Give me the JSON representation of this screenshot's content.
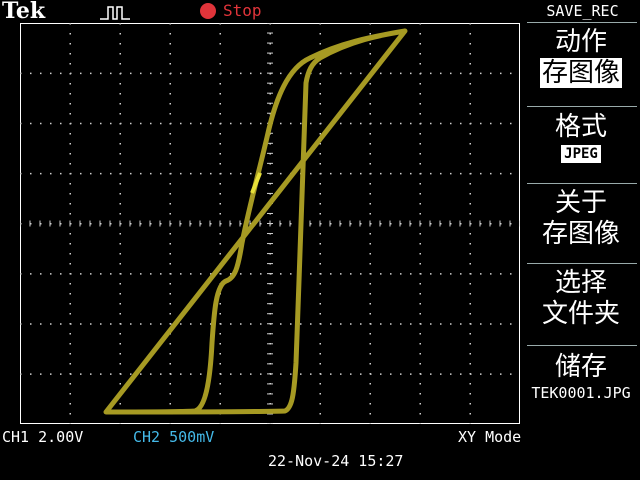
{
  "header": {
    "brand": "Tek",
    "trigger_icon": "pulse-trigger-icon",
    "status": "Stop",
    "status_color": "#e0343a"
  },
  "menu": {
    "title": "SAVE_REC",
    "items": [
      {
        "label": "动作"
      },
      {
        "label": "存图像",
        "highlighted": true
      },
      {
        "label": "格式",
        "value": "JPEG"
      },
      {
        "label_line1": "关于",
        "label_line2": "存图像"
      },
      {
        "label_line1": "选择",
        "label_line2": "文件夹"
      },
      {
        "label": "储存",
        "value": "TEK0001.JPG"
      }
    ]
  },
  "footer": {
    "ch1_label": "CH1",
    "ch1_scale": "2.00V",
    "ch2_label": "CH2",
    "ch2_scale": "500mV",
    "ch2_color": "#44b9e8",
    "mode": "XY Mode",
    "datetime": "22-Nov-24 15:27"
  },
  "trace_color": "#a69a23"
}
